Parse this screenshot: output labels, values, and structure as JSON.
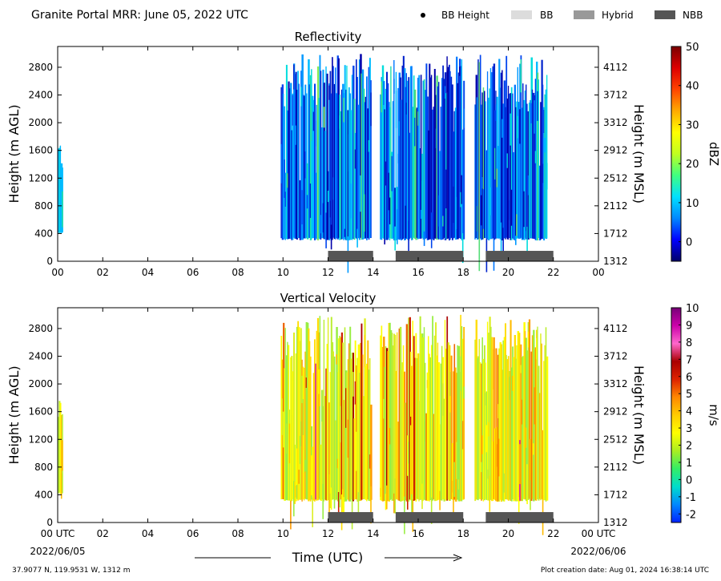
{
  "header": {
    "title": "Granite Portal MRR:  June 05, 2022 UTC",
    "legend": [
      {
        "label": "BB Height",
        "kind": "dot",
        "color": "#000000"
      },
      {
        "label": "BB",
        "kind": "box",
        "color": "#dcdcdc"
      },
      {
        "label": "Hybrid",
        "kind": "box",
        "color": "#999999"
      },
      {
        "label": "NBB",
        "kind": "box",
        "color": "#555555"
      }
    ]
  },
  "footer": {
    "location": "37.9077 N, 119.9531 W, 1312 m",
    "created": "Plot creation date: Aug 01, 2024 16:38:14 UTC",
    "xlabel": "Time (UTC)",
    "start_date": "2022/06/05",
    "end_date": "2022/06/06"
  },
  "chart_data": [
    {
      "type": "heatmap",
      "title": "Reflectivity",
      "ylabel": "Height (m AGL)",
      "ylabel_right": "Height (m MSL)",
      "xlim": [
        0,
        24
      ],
      "ylim": [
        0,
        3100
      ],
      "x_ticks": [
        "00",
        "02",
        "04",
        "06",
        "08",
        "10",
        "12",
        "14",
        "16",
        "18",
        "20",
        "22",
        "00"
      ],
      "y_ticks": [
        0,
        400,
        800,
        1200,
        1600,
        2000,
        2400,
        2800
      ],
      "y_ticks_right": [
        1312,
        1712,
        2112,
        2512,
        2912,
        3312,
        3712,
        4112
      ],
      "colorbar": {
        "label": "dBZ",
        "min": -5,
        "max": 50,
        "ticks": [
          0,
          10,
          20,
          30,
          40,
          50
        ]
      },
      "echo_segments": [
        {
          "start": 0.0,
          "end": 0.2,
          "base": 400,
          "top": 1800
        },
        {
          "start": 9.9,
          "end": 13.9,
          "base": 300,
          "top": 3000
        },
        {
          "start": 14.3,
          "end": 18.0,
          "base": 300,
          "top": 3000
        },
        {
          "start": 18.5,
          "end": 21.7,
          "base": 300,
          "top": 3000
        }
      ],
      "bright_band_bars": [
        {
          "start": 12.0,
          "end": 14.0,
          "class": "NBB"
        },
        {
          "start": 15.0,
          "end": 18.0,
          "class": "NBB"
        },
        {
          "start": 19.0,
          "end": 22.0,
          "class": "NBB"
        }
      ]
    },
    {
      "type": "heatmap",
      "title": "Vertical Velocity",
      "ylabel": "Height (m AGL)",
      "ylabel_right": "Height (m MSL)",
      "xlim": [
        0,
        24
      ],
      "ylim": [
        0,
        3100
      ],
      "x_ticks": [
        "00 UTC",
        "02",
        "04",
        "06",
        "08",
        "10",
        "12",
        "14",
        "16",
        "18",
        "20",
        "22",
        "00 UTC"
      ],
      "y_ticks": [
        0,
        400,
        800,
        1200,
        1600,
        2000,
        2400,
        2800
      ],
      "y_ticks_right": [
        1312,
        1712,
        2112,
        2512,
        2912,
        3312,
        3712,
        4112
      ],
      "colorbar": {
        "label": "m/s",
        "min": -2.5,
        "max": 10,
        "ticks": [
          -2,
          -1,
          0,
          1,
          2,
          3,
          4,
          5,
          6,
          7,
          8,
          9,
          10
        ]
      },
      "echo_segments": [
        {
          "start": 0.0,
          "end": 0.2,
          "base": 400,
          "top": 1800
        },
        {
          "start": 9.9,
          "end": 13.9,
          "base": 300,
          "top": 3000
        },
        {
          "start": 14.3,
          "end": 18.0,
          "base": 300,
          "top": 3000
        },
        {
          "start": 18.5,
          "end": 21.7,
          "base": 300,
          "top": 3000
        }
      ],
      "bright_band_bars": [
        {
          "start": 12.0,
          "end": 14.0,
          "class": "NBB"
        },
        {
          "start": 15.0,
          "end": 18.0,
          "class": "NBB"
        },
        {
          "start": 19.0,
          "end": 22.0,
          "class": "NBB"
        }
      ]
    }
  ]
}
